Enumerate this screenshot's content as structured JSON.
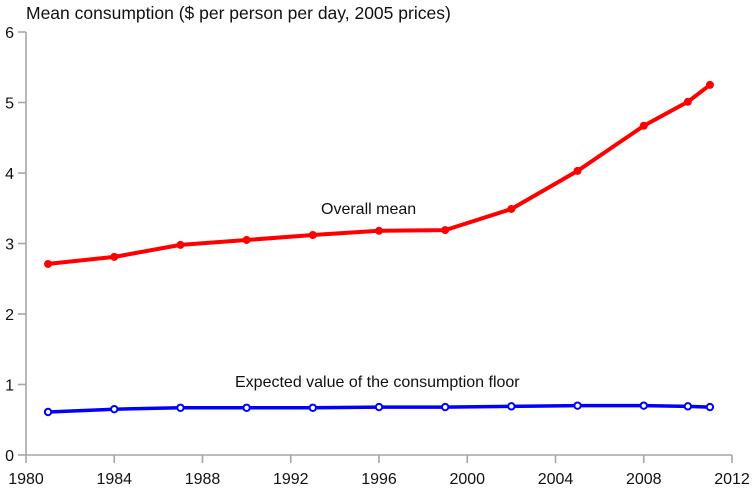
{
  "chart_data": {
    "type": "line",
    "title": "Mean consumption ($ per person per day, 2005 prices)",
    "xlabel": "",
    "ylabel": "",
    "xlim": [
      1980,
      2012
    ],
    "ylim": [
      0,
      6
    ],
    "x_ticks": [
      1980,
      1984,
      1988,
      1992,
      1996,
      2000,
      2004,
      2008,
      2012
    ],
    "y_ticks": [
      0,
      1,
      2,
      3,
      4,
      5,
      6
    ],
    "grid": false,
    "legend": "none (inline annotations)",
    "x": [
      1981,
      1984,
      1987,
      1990,
      1993,
      1996,
      1999,
      2002,
      2005,
      2008,
      2010,
      2011
    ],
    "series": [
      {
        "name": "Overall mean",
        "color": "#ff0000",
        "marker": "filled-circle",
        "values": [
          2.71,
          2.81,
          2.98,
          3.05,
          3.12,
          3.18,
          3.19,
          3.49,
          4.03,
          4.67,
          5.01,
          5.25
        ],
        "annotation": "Overall mean"
      },
      {
        "name": "Expected value of the consumption floor",
        "color": "#0000ff",
        "marker": "open-circle",
        "values": [
          0.61,
          0.65,
          0.67,
          0.67,
          0.67,
          0.68,
          0.68,
          0.69,
          0.7,
          0.7,
          0.69,
          0.68
        ],
        "annotation": "Expected value of the consumption floor"
      }
    ]
  }
}
